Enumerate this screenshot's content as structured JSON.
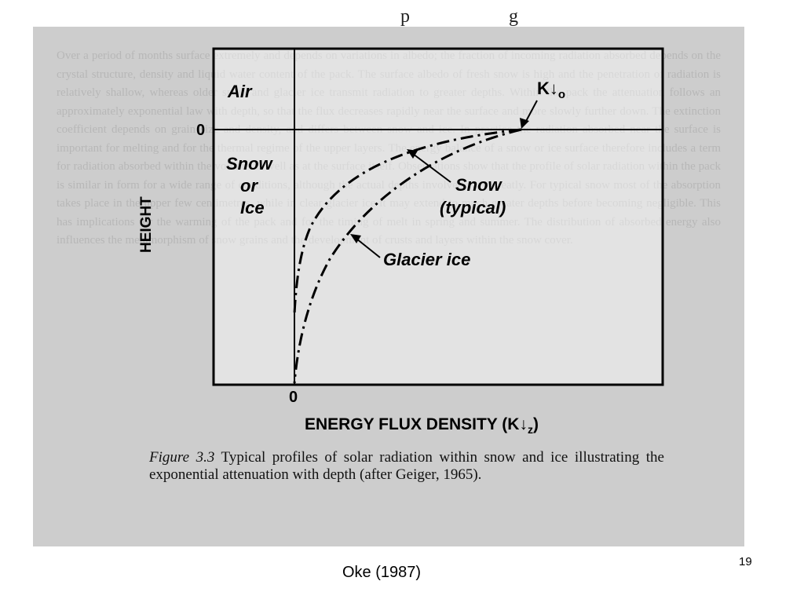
{
  "background_text": "Over a period of months surface extremely and depends on variations in albedo; the fraction of incoming radiation absorbed depends on the crystal structure, density and liquid water content of the pack. The surface albedo of fresh snow is high and the penetration of radiation is relatively shallow, whereas older snow and glacier ice transmit radiation to greater depths. Within the pack the attenuation follows an approximately exponential law with depth, so that the flux decreases rapidly near the surface and more slowly further down. The extinction coefficient depends on grain size and density, and differs between snow and ice. In practice the radiation absorbed near the surface is important for melting and for the thermal regime of the upper layers. The energy balance of a snow or ice surface therefore includes a term for radiation absorbed within the volume as well as at the surface itself. Observations show that the profile of solar radiation within the pack is similar in form for a wide range of conditions, although the actual depths involved vary greatly. For typical snow most of the absorption takes place in the upper few centimetres, while in clear glacier ice it may extend to much greater depths before becoming negligible. This has implications for the warming of the pack and for the timing of melt in spring and summer. The distribution of absorbed energy also influences the metamorphism of snow grains and the development of crusts and layers within the snow cover.",
  "top_fragment": {
    "left": "",
    "right": "p",
    "far_right": "g"
  },
  "diagram": {
    "region_labels": {
      "air": "Air",
      "snow_or_ice": [
        "Snow",
        "or",
        "Ice"
      ]
    },
    "zero_top": "0",
    "zero_bottom": "0",
    "y_axis_label": "HEIGHT",
    "x_axis_label_main": "ENERGY FLUX DENSITY (K",
    "x_axis_label_symbol": "↓",
    "x_axis_label_sub": "z",
    "x_axis_label_close": ")",
    "surface_flux_label_main": "K",
    "surface_flux_label_symbol": "↓",
    "surface_flux_label_sub": "o",
    "curve_snow_label": [
      "Snow",
      "(typical)"
    ],
    "curve_ice_label": "Glacier ice"
  },
  "caption": {
    "figure_label": "Figure 3.3",
    "text": "Typical profiles of solar radiation within snow and ice illustrating the exponential attenuation with depth (after Geiger, 1965)."
  },
  "footer": {
    "citation": "Oke (1987)",
    "slide_number": "19"
  }
}
